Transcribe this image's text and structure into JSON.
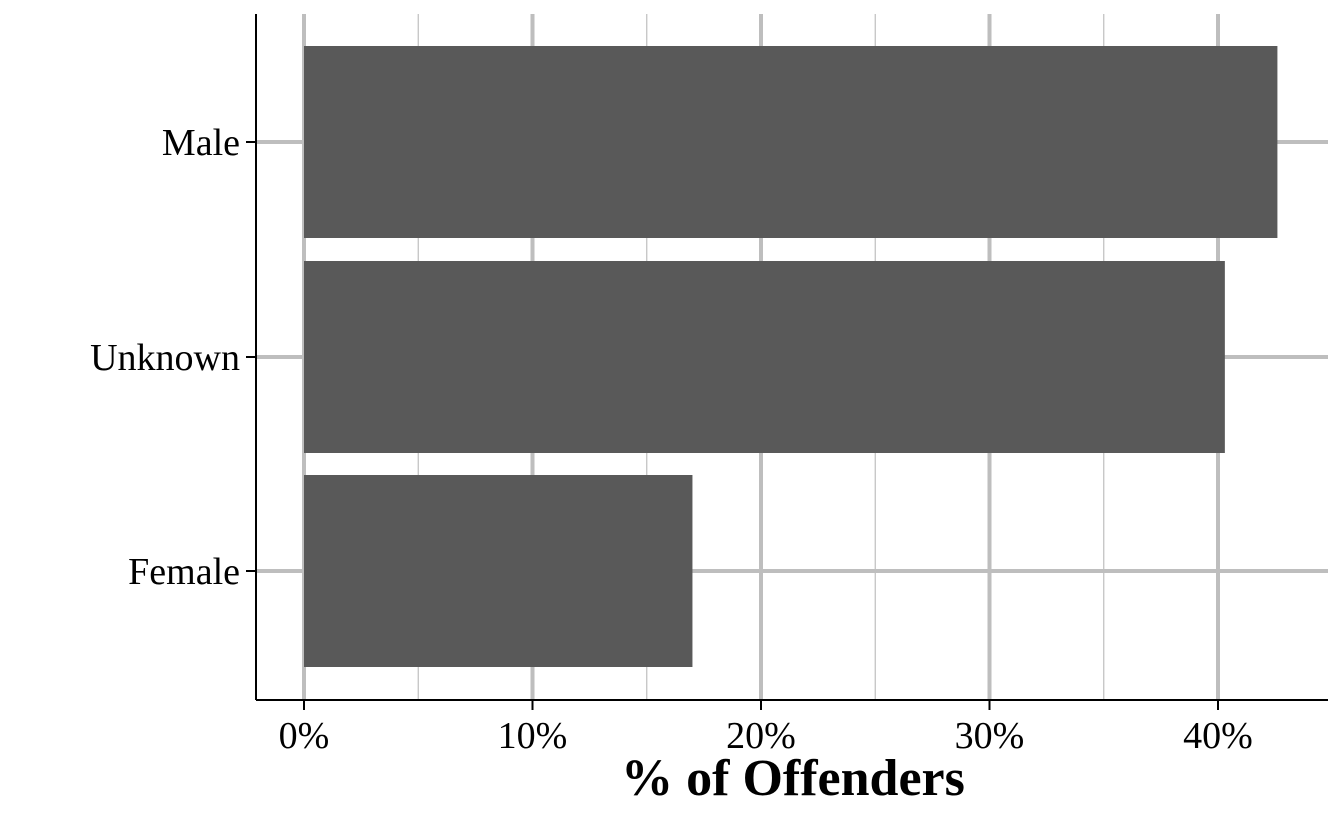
{
  "chart_data": {
    "type": "bar",
    "orientation": "horizontal",
    "categories": [
      "Male",
      "Unknown",
      "Female"
    ],
    "values": [
      42.6,
      40.3,
      17.0
    ],
    "value_unit": "%",
    "xlabel": "% of Offenders",
    "ylabel": "",
    "title": "",
    "xlim": [
      0,
      45
    ],
    "xticks": [
      0,
      10,
      20,
      30,
      40
    ],
    "xtick_labels": [
      "0%",
      "10%",
      "20%",
      "30%",
      "40%"
    ],
    "grid": true,
    "legend": "none",
    "colors": {
      "bar": "#595959",
      "grid": "#bebebe",
      "axis": "#000000",
      "background": "#ffffff"
    }
  }
}
